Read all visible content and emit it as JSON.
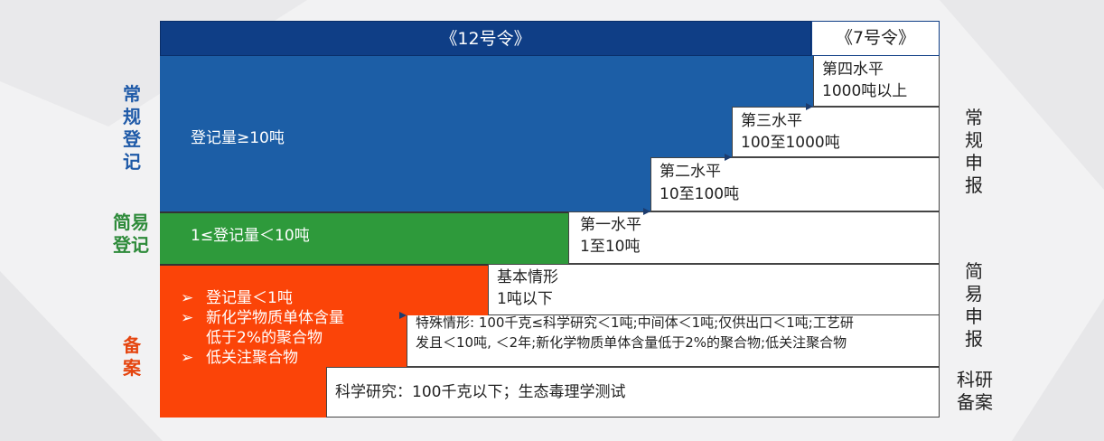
{
  "header": {
    "main_label": "《12号令》",
    "right_label": "《7号令》"
  },
  "left_labels": {
    "regular": [
      "常",
      "规",
      "登",
      "记"
    ],
    "simple": [
      "简易",
      "登记"
    ],
    "filing": [
      "备",
      "案"
    ]
  },
  "right_labels": {
    "regular_report": [
      "常",
      "规",
      "申",
      "报"
    ],
    "simple_report": [
      "简",
      "易",
      "申",
      "报"
    ],
    "research_filing": [
      "科研",
      "备案"
    ]
  },
  "bars": {
    "blue": "登记量≥10吨",
    "green": "1≤登记量＜10吨",
    "orange": {
      "bullet_marker": "➢",
      "items": [
        {
          "lines": [
            "登记量＜1吨"
          ]
        },
        {
          "lines": [
            "新化学物质单体含量",
            "低于2%的聚合物"
          ]
        },
        {
          "lines": [
            "低关注聚合物"
          ]
        }
      ]
    }
  },
  "levels": [
    {
      "title": "第四水平",
      "range": "1000吨以上"
    },
    {
      "title": "第三水平",
      "range": "100至1000吨"
    },
    {
      "title": "第二水平",
      "range": "10至100吨"
    },
    {
      "title": "第一水平",
      "range": "1至10吨"
    }
  ],
  "boxes": {
    "basic": {
      "title": "基本情形",
      "range": "1吨以下"
    },
    "special": {
      "line1": "特殊情形: 100千克≤科学研究＜1吨;中间体＜1吨;仅供出口＜1吨;工艺研",
      "line2": "发且＜10吨, ＜2年;新化学物质单体含量低于2%的聚合物;低关注聚合物"
    },
    "research": "科学研究：100千克以下；生态毒理学测试"
  },
  "colors": {
    "header_blue": "#0f3e86",
    "regular_blue": "#1c5ea6",
    "simple_green": "#2e9a3b",
    "filing_orange": "#fb4408",
    "regular_label": "#1f5aa8",
    "simple_label": "#2e8b3a",
    "filing_label": "#e5450f"
  }
}
